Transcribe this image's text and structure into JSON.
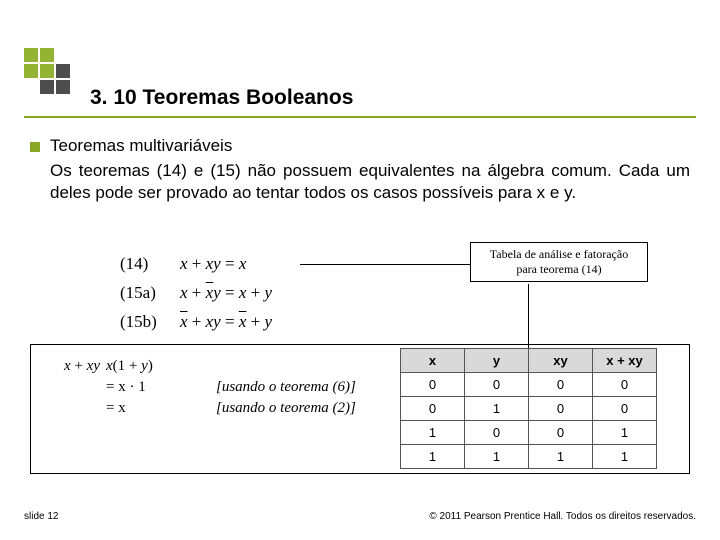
{
  "accent_color": "#8aa626",
  "logo": {
    "cells": [
      "#94b333",
      "#94b333",
      "#ffffff",
      "#94b333",
      "#94b333",
      "#4d4d4d",
      "#ffffff",
      "#4d4d4d",
      "#4d4d4d"
    ]
  },
  "heading": {
    "text": "3. 10 Teoremas Booleanos",
    "fontsize": 21
  },
  "bullet": {
    "subtitle": "Teoremas multivariáveis"
  },
  "body": "Os teoremas (14) e (15) não possuem equivalentes na álgebra comum. Cada um deles pode ser provado ao tentar todos os casos possíveis para  x e y.",
  "theorems": {
    "rows": [
      {
        "label": "(14)",
        "lhs": "x + xy",
        "rhs": "x",
        "overline_lhs": false
      },
      {
        "label": "(15a)",
        "lhs": "x + x̄y",
        "rhs": "x + y",
        "special": "a"
      },
      {
        "label": "(15b)",
        "lhs": "x̄ + xy",
        "rhs": "x̄ + y",
        "special": "b"
      }
    ]
  },
  "callout": {
    "line1": "Tabela de análise e fatoração",
    "line2": "para teorema (14)"
  },
  "derivation": {
    "line1_lhs": "x + xy",
    "line1_mid": "x(1 + y)",
    "line2_mid": "= x · 1",
    "line2_note": "[usando o teorema (6)]",
    "line3_mid": "= x",
    "line3_note": "[usando o teorema (2)]"
  },
  "table": {
    "header_bg": "#d9d9d9",
    "columns": [
      "x",
      "y",
      "xy",
      "x + xy"
    ],
    "rows": [
      [
        "0",
        "0",
        "0",
        "0"
      ],
      [
        "0",
        "1",
        "0",
        "0"
      ],
      [
        "1",
        "0",
        "0",
        "1"
      ],
      [
        "1",
        "1",
        "1",
        "1"
      ]
    ]
  },
  "footer": {
    "left": "slide 12",
    "right": "© 2011 Pearson Prentice Hall. Todos os direitos reservados."
  }
}
